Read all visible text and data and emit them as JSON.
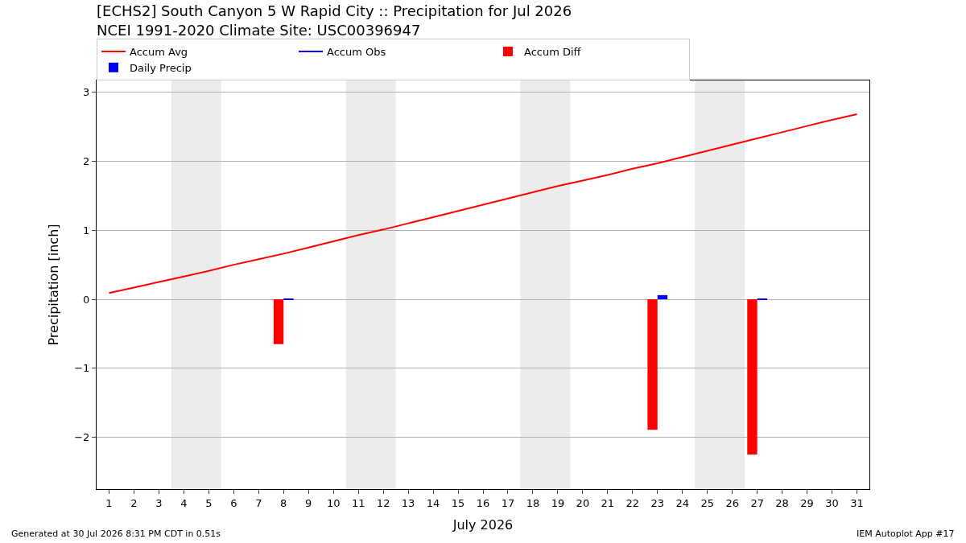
{
  "chart_data": {
    "type": "bar",
    "title": "[ECHS2] South Canyon 5 W Rapid City :: Precipitation for Jul 2026",
    "subtitle": "NCEI 1991-2020 Climate Site: USC00396947",
    "xlabel": "July 2026",
    "ylabel": "Precipitation [inch]",
    "x": [
      1,
      2,
      3,
      4,
      5,
      6,
      7,
      8,
      9,
      10,
      11,
      12,
      13,
      14,
      15,
      16,
      17,
      18,
      19,
      20,
      21,
      22,
      23,
      24,
      25,
      26,
      27,
      28,
      29,
      30,
      31
    ],
    "series": [
      {
        "name": "Accum Avg",
        "type": "line",
        "color": "#ff0000",
        "values": [
          0.09,
          0.17,
          0.25,
          0.33,
          0.41,
          0.5,
          0.58,
          0.66,
          0.75,
          0.84,
          0.93,
          1.01,
          1.1,
          1.19,
          1.28,
          1.37,
          1.46,
          1.55,
          1.64,
          1.72,
          1.8,
          1.89,
          1.97,
          2.06,
          2.15,
          2.24,
          2.33,
          2.42,
          2.51,
          2.6,
          2.68
        ]
      },
      {
        "name": "Accum Obs",
        "type": "line",
        "color": "#0000ff",
        "values": [
          null,
          null,
          null,
          null,
          null,
          null,
          null,
          null,
          null,
          null,
          null,
          null,
          null,
          null,
          null,
          null,
          null,
          null,
          null,
          null,
          null,
          null,
          null,
          null,
          null,
          null,
          null,
          null,
          null,
          null,
          null
        ]
      },
      {
        "name": "Accum Diff",
        "color": "#ff0000",
        "values": [
          null,
          null,
          null,
          null,
          null,
          null,
          null,
          -0.65,
          null,
          null,
          null,
          null,
          null,
          null,
          null,
          null,
          null,
          null,
          null,
          null,
          null,
          null,
          -1.89,
          null,
          null,
          null,
          -2.25,
          null,
          null,
          null,
          null
        ]
      },
      {
        "name": "Daily Precip",
        "color": "#0000ff",
        "values": [
          null,
          null,
          null,
          null,
          null,
          null,
          null,
          0.01,
          null,
          null,
          null,
          null,
          null,
          null,
          null,
          null,
          null,
          null,
          null,
          null,
          null,
          null,
          0.06,
          null,
          null,
          null,
          0.01,
          null,
          null,
          null,
          null
        ]
      }
    ],
    "bands": [
      {
        "axis": "x",
        "from": 3.5,
        "to": 5.5,
        "color": "#ececec"
      },
      {
        "axis": "x",
        "from": 10.5,
        "to": 12.5,
        "color": "#ececec"
      },
      {
        "axis": "x",
        "from": 17.5,
        "to": 19.5,
        "color": "#ececec"
      },
      {
        "axis": "x",
        "from": 24.5,
        "to": 26.5,
        "color": "#ececec"
      }
    ],
    "xlim": [
      0.5,
      31.5
    ],
    "xticks": [
      1,
      2,
      3,
      4,
      5,
      6,
      7,
      8,
      9,
      10,
      11,
      12,
      13,
      14,
      15,
      16,
      17,
      18,
      19,
      20,
      21,
      22,
      23,
      24,
      25,
      26,
      27,
      28,
      29,
      30,
      31
    ],
    "ylim": [
      -2.75,
      3.17
    ],
    "yticks": [
      -2,
      -1,
      0,
      1,
      2,
      3
    ],
    "grid": "y",
    "legend": "top",
    "annotations": [
      "Generated at 30 Jul 2026 8:31 PM CDT in 0.51s",
      "IEM Autoplot App #17"
    ]
  }
}
